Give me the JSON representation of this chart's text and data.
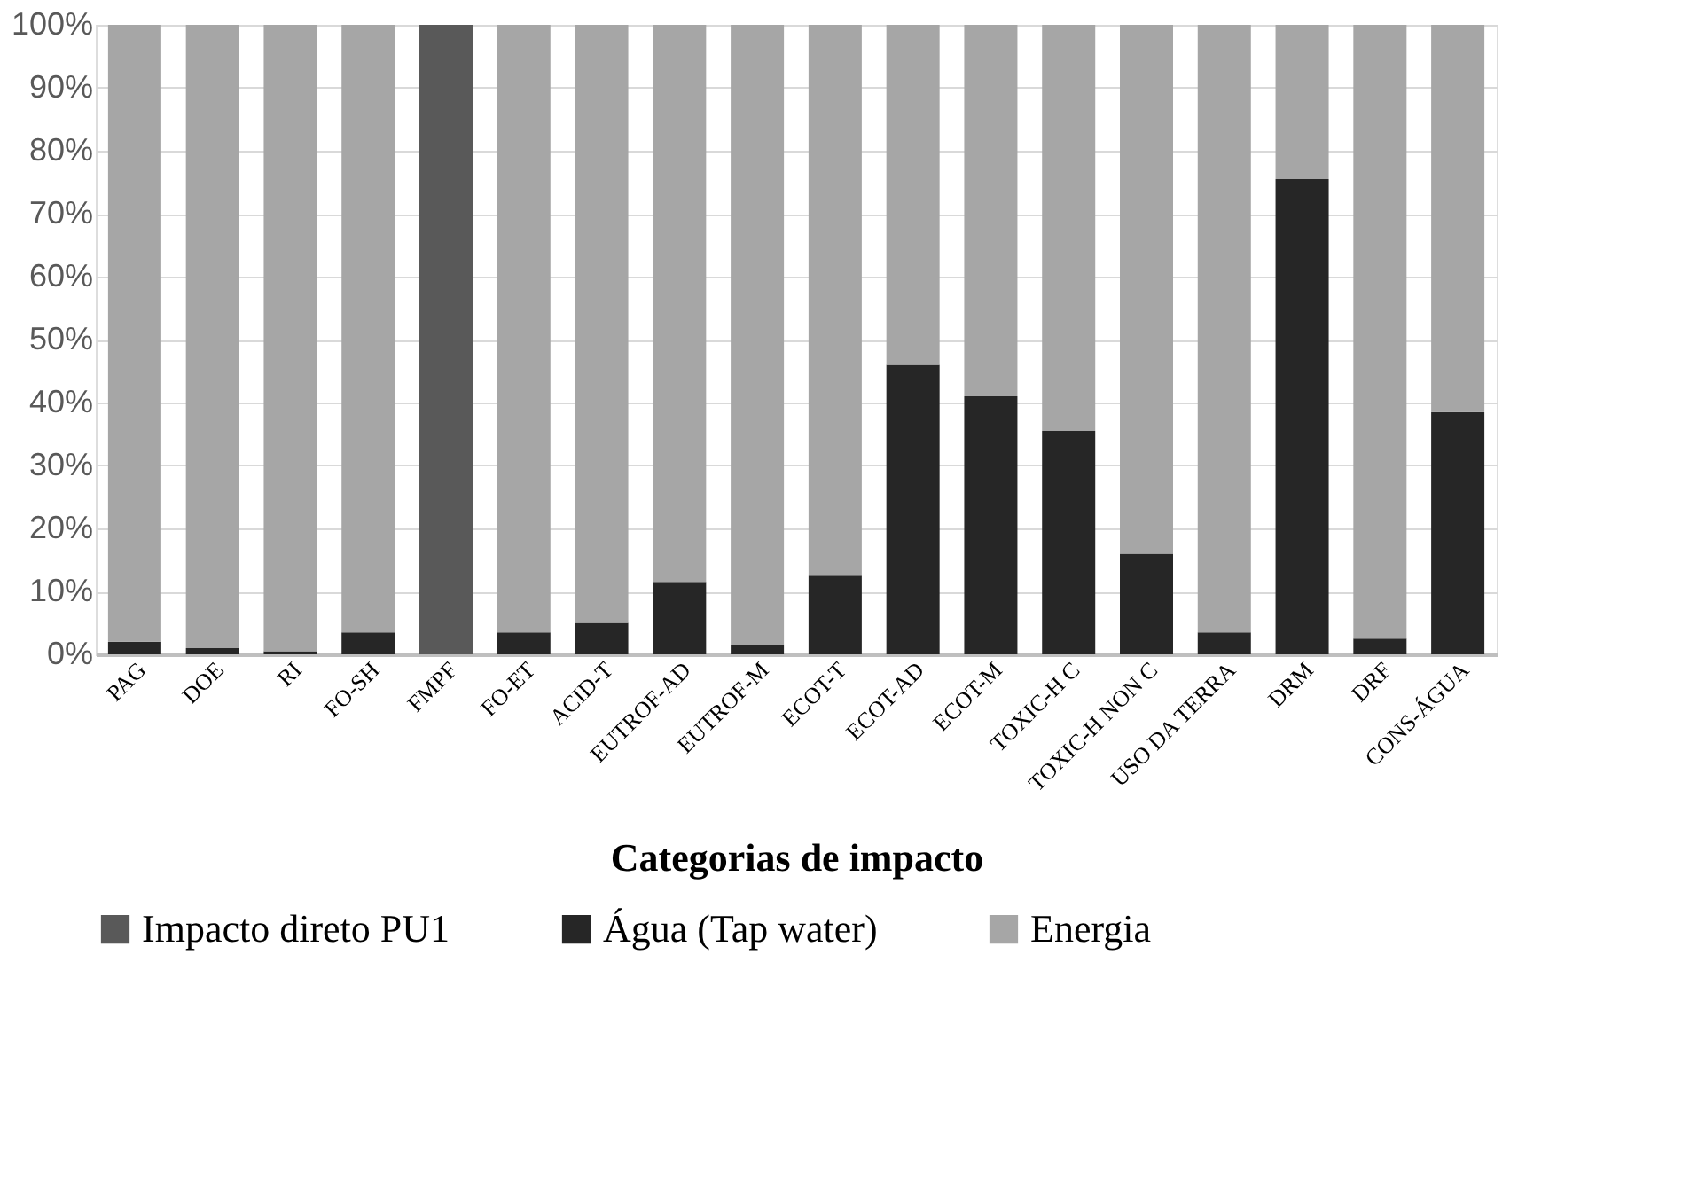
{
  "chart_data": {
    "type": "bar",
    "stacked": true,
    "xlabel": "Categorias de impacto",
    "categories": [
      "PAG",
      "DOE",
      "RI",
      "FO-SH",
      "FMPF",
      "FO-ET",
      "ACID-T",
      "EUTROF-AD",
      "EUTROF-M",
      "ECOT-T",
      "ECOT-AD",
      "ECOT-M",
      "TOXIC-H C",
      "TOXIC-H NON C",
      "USO DA TERRA",
      "DRM",
      "DRF",
      "CONS-ÁGUA"
    ],
    "series": [
      {
        "name": "Impacto direto PU1",
        "color": "#595959",
        "values": [
          0,
          0,
          0,
          0,
          100,
          0,
          0,
          0,
          0,
          0,
          0,
          0,
          0,
          0,
          0,
          0,
          0,
          0
        ]
      },
      {
        "name": "Água (Tap water)",
        "color": "#262626",
        "values": [
          2,
          1,
          0.5,
          3.5,
          0,
          3.5,
          5,
          11.5,
          1.5,
          12.5,
          46,
          41,
          35.5,
          16,
          3.5,
          75.5,
          2.5,
          38.5
        ]
      },
      {
        "name": "Energia",
        "color": "#a6a6a6",
        "values": [
          98,
          99,
          99.5,
          96.5,
          0,
          96.5,
          95,
          88.5,
          98.5,
          87.5,
          54,
          59,
          64.5,
          84,
          96.5,
          24.5,
          97.5,
          61.5
        ]
      }
    ],
    "ylim": [
      0,
      100
    ],
    "yticks": [
      {
        "value": 0,
        "label": "0%"
      },
      {
        "value": 10,
        "label": "10%"
      },
      {
        "value": 20,
        "label": "20%"
      },
      {
        "value": 30,
        "label": "30%"
      },
      {
        "value": 40,
        "label": "40%"
      },
      {
        "value": 50,
        "label": "50%"
      },
      {
        "value": 60,
        "label": "60%"
      },
      {
        "value": 70,
        "label": "70%"
      },
      {
        "value": 80,
        "label": "80%"
      },
      {
        "value": 90,
        "label": "90%"
      },
      {
        "value": 100,
        "label": "100%"
      }
    ],
    "grid": "y",
    "legend": "bottom"
  }
}
